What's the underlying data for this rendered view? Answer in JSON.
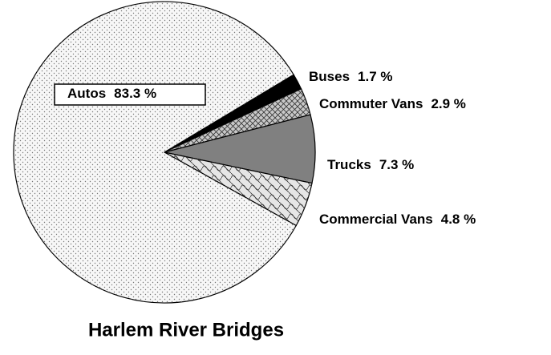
{
  "chart_data": {
    "type": "pie",
    "title": "Harlem River Bridges",
    "categories": [
      "Buses",
      "Commuter Vans",
      "Trucks",
      "Commercial Vans",
      "Autos"
    ],
    "values": [
      1.7,
      2.9,
      7.3,
      4.8,
      83.3
    ],
    "value_labels": [
      "1.7 %",
      "2.9 %",
      "7.3 %",
      "4.8 %",
      "83.3 %"
    ],
    "colors": [
      "#000000",
      "#c8c8c8",
      "#808080",
      "#e6e6e6",
      "#f7f7f7"
    ]
  }
}
